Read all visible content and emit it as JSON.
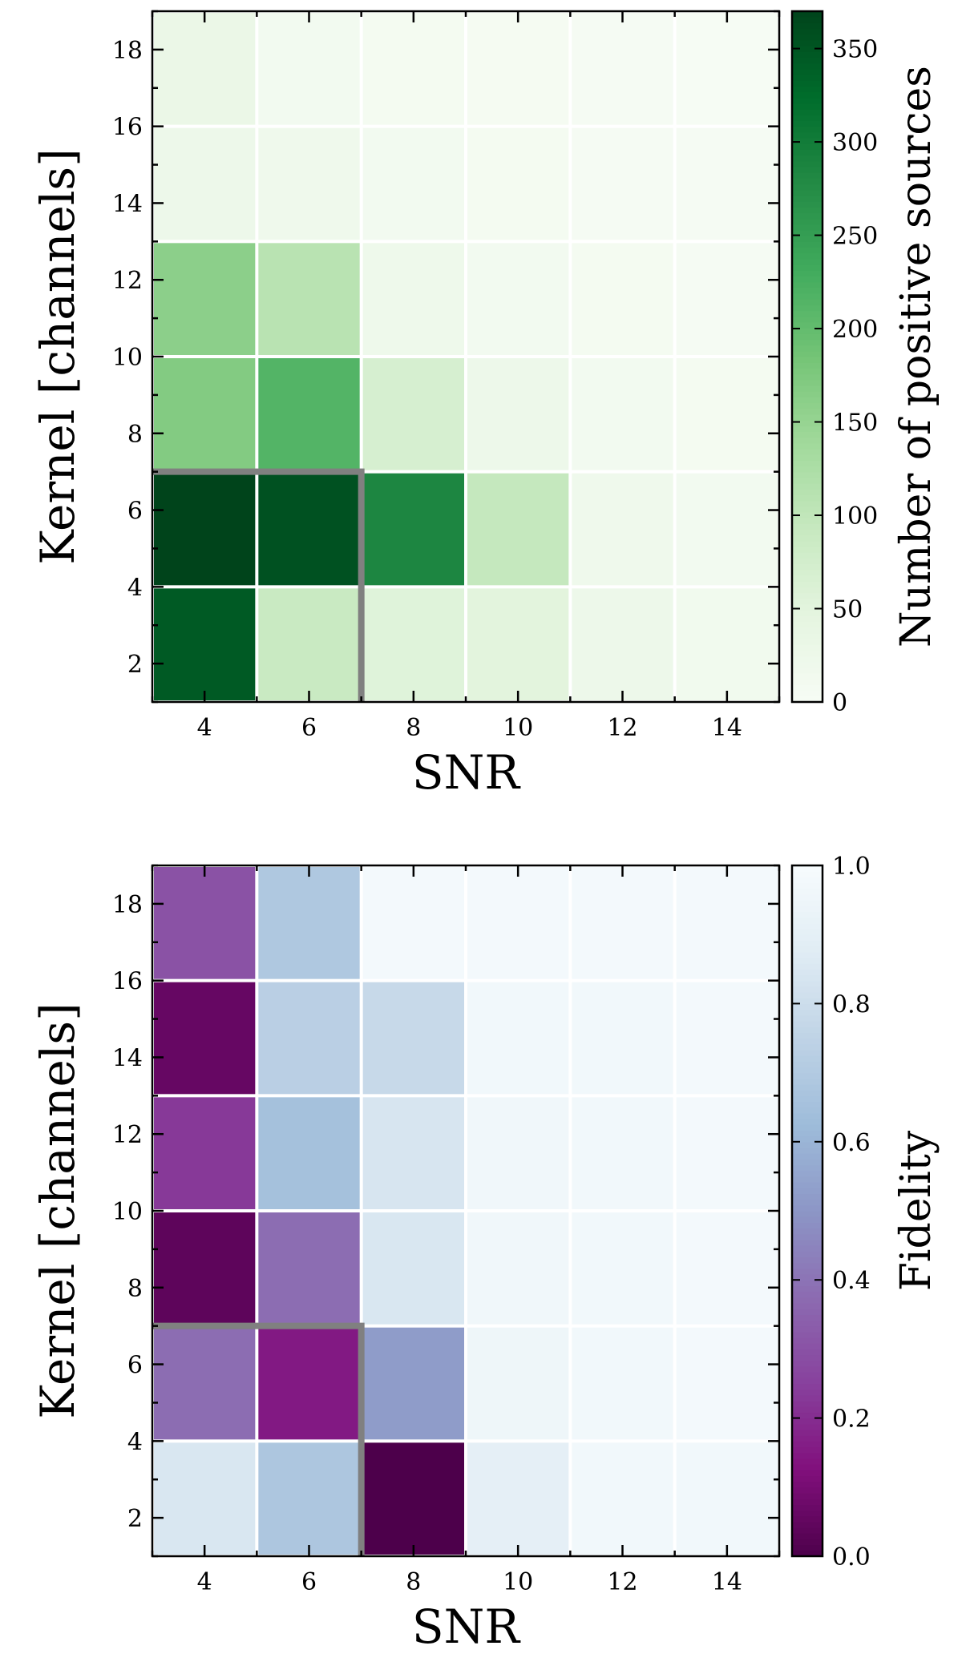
{
  "chart_data": [
    {
      "type": "heatmap",
      "xlabel": "SNR",
      "ylabel": "Kernel [channels]",
      "x_ticks": [
        "4",
        "6",
        "8",
        "10",
        "12",
        "14"
      ],
      "y_ticks": [
        "2",
        "4",
        "6",
        "8",
        "10",
        "12",
        "14",
        "16",
        "18"
      ],
      "x_tick_values": [
        4,
        6,
        8,
        10,
        12,
        14
      ],
      "y_tick_values": [
        2,
        4,
        6,
        8,
        10,
        12,
        14,
        16,
        18
      ],
      "xlim": [
        3,
        15
      ],
      "ylim": [
        1,
        19
      ],
      "snr_bins": [
        4,
        6,
        8,
        10,
        12,
        14
      ],
      "kernel_bins": [
        {
          "lo": 1,
          "hi": 4
        },
        {
          "lo": 4,
          "hi": 7
        },
        {
          "lo": 7,
          "hi": 10
        },
        {
          "lo": 10,
          "hi": 13
        },
        {
          "lo": 13,
          "hi": 16
        },
        {
          "lo": 16,
          "hi": 19
        }
      ],
      "values": [
        [
          345,
          90,
          55,
          50,
          25,
          15
        ],
        [
          370,
          355,
          285,
          95,
          20,
          12
        ],
        [
          170,
          215,
          70,
          25,
          12,
          8
        ],
        [
          160,
          110,
          22,
          12,
          8,
          5
        ],
        [
          25,
          20,
          12,
          8,
          5,
          4
        ],
        [
          30,
          12,
          8,
          6,
          4,
          3
        ]
      ],
      "colorbar": {
        "label": "Number of positive sources",
        "range": [
          0,
          370
        ],
        "ticks": [
          "0",
          "50",
          "100",
          "150",
          "200",
          "250",
          "300",
          "350"
        ],
        "tick_values": [
          0,
          50,
          100,
          150,
          200,
          250,
          300,
          350
        ],
        "colormap": "Greens"
      },
      "selection_box": {
        "snr_max": 7,
        "kernel_max": 7
      }
    },
    {
      "type": "heatmap",
      "xlabel": "SNR",
      "ylabel": "Kernel [channels]",
      "x_ticks": [
        "4",
        "6",
        "8",
        "10",
        "12",
        "14"
      ],
      "y_ticks": [
        "2",
        "4",
        "6",
        "8",
        "10",
        "12",
        "14",
        "16",
        "18"
      ],
      "x_tick_values": [
        4,
        6,
        8,
        10,
        12,
        14
      ],
      "y_tick_values": [
        2,
        4,
        6,
        8,
        10,
        12,
        14,
        16,
        18
      ],
      "xlim": [
        3,
        15
      ],
      "ylim": [
        1,
        19
      ],
      "snr_bins": [
        4,
        6,
        8,
        10,
        12,
        14
      ],
      "kernel_bins": [
        {
          "lo": 1,
          "hi": 4
        },
        {
          "lo": 4,
          "hi": 7
        },
        {
          "lo": 7,
          "hi": 10
        },
        {
          "lo": 10,
          "hi": 13
        },
        {
          "lo": 13,
          "hi": 16
        },
        {
          "lo": 16,
          "hi": 19
        }
      ],
      "values": [
        [
          0.85,
          0.68,
          0.0,
          0.9,
          0.97,
          0.97
        ],
        [
          0.38,
          0.15,
          0.52,
          0.95,
          0.97,
          0.98
        ],
        [
          0.04,
          0.38,
          0.85,
          0.96,
          0.97,
          0.98
        ],
        [
          0.23,
          0.65,
          0.84,
          0.96,
          0.97,
          0.98
        ],
        [
          0.06,
          0.73,
          0.78,
          0.97,
          0.97,
          0.98
        ],
        [
          0.3,
          0.69,
          0.98,
          0.98,
          0.98,
          0.98
        ]
      ],
      "colorbar": {
        "label": "Fidelity",
        "range": [
          0,
          1
        ],
        "ticks": [
          "0.0",
          "0.2",
          "0.4",
          "0.6",
          "0.8",
          "1.0"
        ],
        "tick_values": [
          0.0,
          0.2,
          0.4,
          0.6,
          0.8,
          1.0
        ],
        "colormap": "BuPu"
      },
      "selection_box": {
        "snr_max": 7,
        "kernel_max": 7
      }
    }
  ]
}
